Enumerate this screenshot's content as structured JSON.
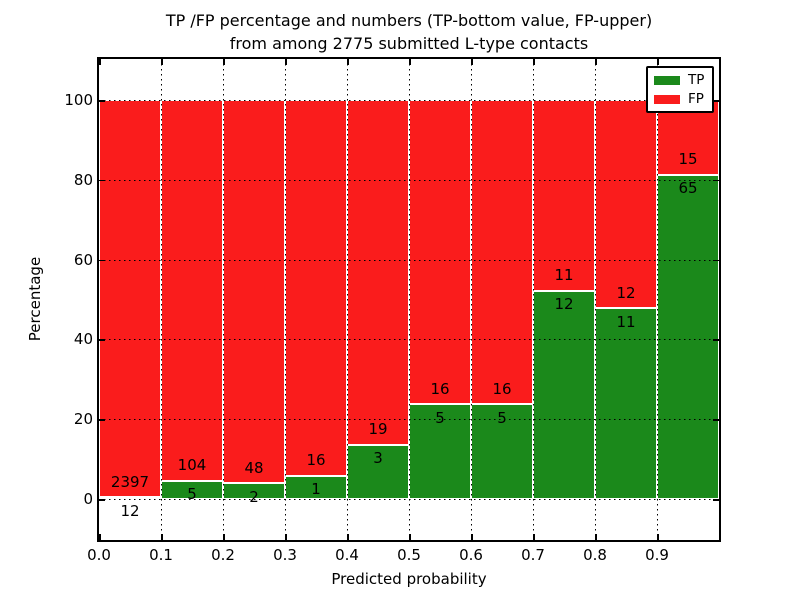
{
  "figure": {
    "title_line1": "TP /FP percentage and numbers (TP-bottom value, FP-upper)",
    "title_line2": "from among 2775 submitted L-type contacts",
    "xlabel": "Predicted probability",
    "ylabel": "Percentage"
  },
  "chart_data": {
    "type": "bar",
    "stacked": true,
    "normalized_to_percent": true,
    "title": "TP /FP percentage and numbers (TP-bottom value, FP-upper) from among 2775 submitted L-type contacts",
    "xlabel": "Predicted probability",
    "ylabel": "Percentage",
    "total_contacts": 2775,
    "bin_edges": [
      0.0,
      0.1,
      0.2,
      0.3,
      0.4,
      0.5,
      0.6,
      0.7,
      0.8,
      0.9,
      1.0
    ],
    "xtick_labels": [
      "0.0",
      "0.1",
      "0.2",
      "0.3",
      "0.4",
      "0.5",
      "0.6",
      "0.7",
      "0.8",
      "0.9"
    ],
    "yticks": [
      0,
      20,
      40,
      60,
      80,
      100
    ],
    "ylim": [
      -10.3,
      110.3
    ],
    "xlim": [
      0.0,
      1.0
    ],
    "grid": true,
    "legend_position": "upper right",
    "series": [
      {
        "name": "TP",
        "color": "#1b891b",
        "counts": [
          12,
          5,
          2,
          1,
          3,
          5,
          5,
          12,
          11,
          65
        ]
      },
      {
        "name": "FP",
        "color": "#fa1c1c",
        "counts": [
          2397,
          104,
          48,
          16,
          19,
          16,
          16,
          11,
          12,
          15
        ]
      }
    ],
    "tp_percent_of_bin": [
      0.5,
      4.59,
      4.0,
      5.88,
      13.64,
      23.81,
      23.81,
      52.17,
      47.83,
      81.25
    ]
  }
}
